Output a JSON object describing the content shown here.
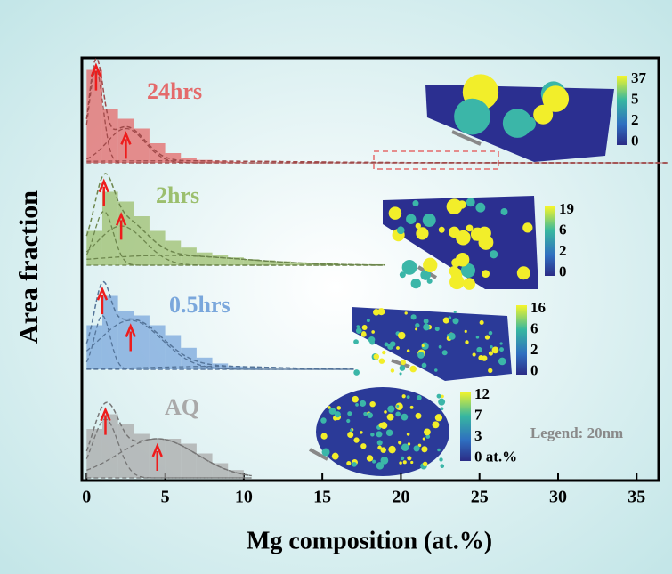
{
  "chart_data": {
    "type": "stacked-histogram",
    "x_label": "Mg composition (at.%)",
    "y_label": "Area fraction",
    "xlim": [
      -0.3,
      36.4
    ],
    "xticks": [
      0,
      5,
      10,
      15,
      20,
      25,
      30,
      35
    ],
    "annotation": "Legend: 20nm",
    "series": [
      {
        "name": "24hrs",
        "color": "#e46a6a",
        "bins": [
          0,
          1,
          2,
          3,
          4,
          5,
          6,
          7,
          8,
          9,
          10
        ],
        "values": [
          0.95,
          0.55,
          0.45,
          0.35,
          0.2,
          0.1,
          0.05,
          0.03,
          0.02,
          0.01
        ],
        "fit": [
          {
            "center": 0.6,
            "sigma": 0.45,
            "amplitude": 0.95
          },
          {
            "center": 2.5,
            "sigma": 1.2,
            "amplitude": 0.35
          },
          {
            "center": 5,
            "sigma": 8,
            "amplitude": 0.02
          }
        ],
        "fit_xmax": 37,
        "colorbar_ticks": [
          37,
          5,
          2,
          0
        ]
      },
      {
        "name": "2hrs",
        "color": "#9cbf6e",
        "bins": [
          0,
          1,
          2,
          3,
          4,
          5,
          6,
          7,
          8,
          9,
          10,
          11,
          12,
          13,
          14,
          15,
          16,
          17,
          18,
          19
        ],
        "values": [
          0.35,
          0.75,
          0.65,
          0.5,
          0.35,
          0.25,
          0.18,
          0.13,
          0.1,
          0.08,
          0.06,
          0.05,
          0.04,
          0.03,
          0.02,
          0.02,
          0.01,
          0.01,
          0.01
        ],
        "fit": [
          {
            "center": 1.1,
            "sigma": 0.6,
            "amplitude": 0.55
          },
          {
            "center": 2.2,
            "sigma": 1.5,
            "amplitude": 0.4
          },
          {
            "center": 5,
            "sigma": 5,
            "amplitude": 0.1
          }
        ],
        "fit_xmax": 19,
        "colorbar_ticks": [
          19,
          6,
          2,
          0
        ]
      },
      {
        "name": "0.5hrs",
        "color": "#7aa7dc",
        "bins": [
          0,
          1,
          2,
          3,
          4,
          5,
          6,
          7,
          8,
          9,
          10,
          11
        ],
        "values": [
          0.45,
          0.75,
          0.6,
          0.55,
          0.45,
          0.35,
          0.22,
          0.12,
          0.06,
          0.03,
          0.02
        ],
        "fit": [
          {
            "center": 1.0,
            "sigma": 0.5,
            "amplitude": 0.55
          },
          {
            "center": 2.8,
            "sigma": 2,
            "amplitude": 0.5
          },
          {
            "center": 8,
            "sigma": 4,
            "amplitude": 0.03
          }
        ],
        "fit_xmax": 17,
        "colorbar_ticks": [
          16,
          6,
          2,
          0
        ]
      },
      {
        "name": "AQ",
        "color": "#a9a9a9",
        "bins": [
          0,
          1,
          2,
          3,
          4,
          5,
          6,
          7,
          8,
          9,
          10
        ],
        "values": [
          0.5,
          0.65,
          0.55,
          0.45,
          0.4,
          0.4,
          0.35,
          0.25,
          0.15,
          0.08
        ],
        "fit": [
          {
            "center": 1.2,
            "sigma": 0.8,
            "amplitude": 0.6
          },
          {
            "center": 4.5,
            "sigma": 2.5,
            "amplitude": 0.4
          }
        ],
        "fit_xmax": 10.5,
        "colorbar_ticks": [
          12,
          7,
          3,
          {
            "value": 0,
            "label": "0 at.%"
          }
        ]
      }
    ]
  }
}
